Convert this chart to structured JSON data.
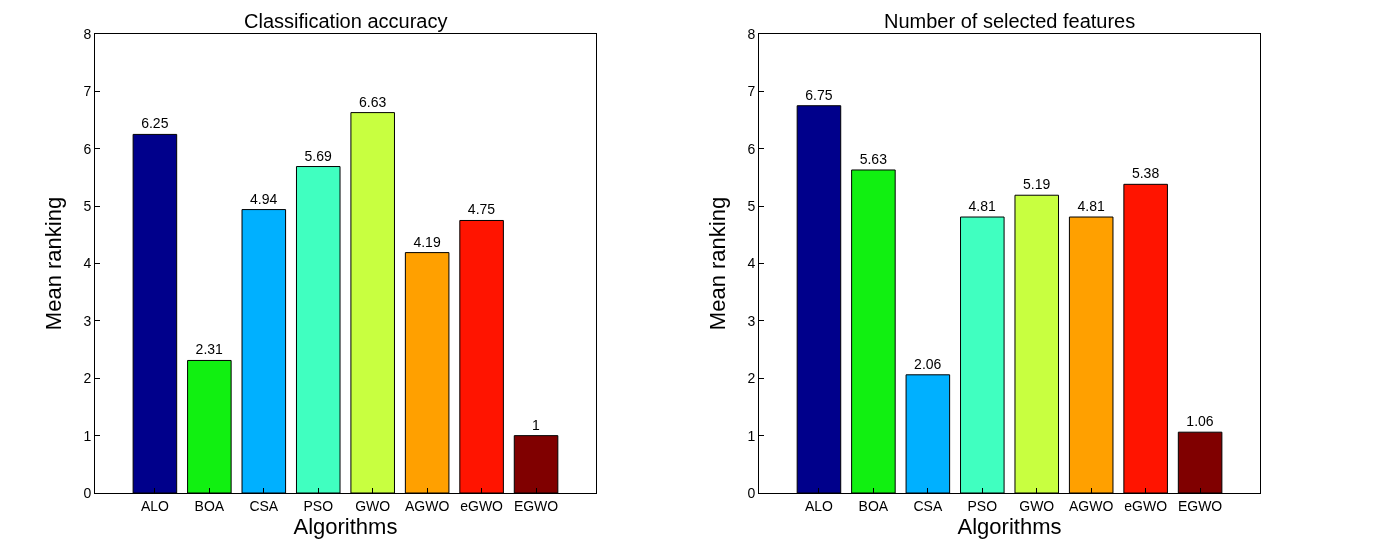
{
  "chart_data": [
    {
      "type": "bar",
      "title": "Classification accuracy",
      "xlabel": "Algorithms",
      "ylabel": "Mean ranking",
      "categories": [
        "ALO",
        "BOA",
        "CSA",
        "PSO",
        "GWO",
        "AGWO",
        "eGWO",
        "EGWO"
      ],
      "values": [
        6.25,
        2.31,
        4.94,
        5.69,
        6.63,
        4.19,
        4.75,
        1
      ],
      "colors": [
        "#00008b",
        "#11f011",
        "#00b0ff",
        "#40ffc0",
        "#c8ff40",
        "#ffa000",
        "#ff1400",
        "#800000"
      ],
      "ylim": [
        0,
        8
      ],
      "yticks": [
        0,
        1,
        2,
        3,
        4,
        5,
        6,
        7,
        8
      ],
      "data_labels": true
    },
    {
      "type": "bar",
      "title": "Number of selected features",
      "xlabel": "Algorithms",
      "ylabel": "Mean ranking",
      "categories": [
        "ALO",
        "BOA",
        "CSA",
        "PSO",
        "GWO",
        "AGWO",
        "eGWO",
        "EGWO"
      ],
      "values": [
        6.75,
        5.63,
        2.06,
        4.81,
        5.19,
        4.81,
        5.38,
        1.06
      ],
      "colors": [
        "#00008b",
        "#11f011",
        "#00b0ff",
        "#40ffc0",
        "#c8ff40",
        "#ffa000",
        "#ff1400",
        "#800000"
      ],
      "ylim": [
        0,
        8
      ],
      "yticks": [
        0,
        1,
        2,
        3,
        4,
        5,
        6,
        7,
        8
      ],
      "data_labels": true
    }
  ]
}
